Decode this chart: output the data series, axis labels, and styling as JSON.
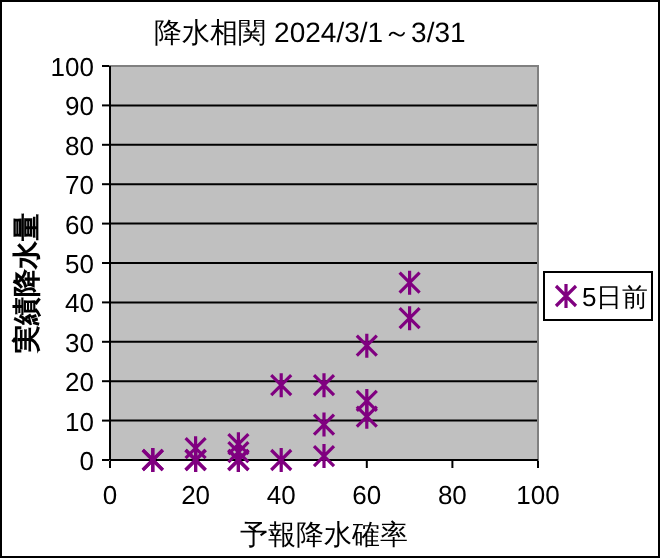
{
  "chart_data": {
    "type": "scatter",
    "title": "降水相関 2024/3/1～3/31",
    "xlabel": "予報降水確率",
    "ylabel": "実績降水量",
    "xlim": [
      0,
      100
    ],
    "xticks": [
      0,
      20,
      40,
      60,
      80,
      100
    ],
    "ylim": [
      0,
      100
    ],
    "yticks": [
      0,
      10,
      20,
      30,
      40,
      50,
      60,
      70,
      80,
      90,
      100
    ],
    "grid": "y",
    "legend": "right",
    "marker": "cross",
    "series": [
      {
        "name": "5日前",
        "color": "#800080",
        "x": [
          10,
          10,
          20,
          20,
          20,
          30,
          30,
          30,
          30,
          40,
          40,
          50,
          50,
          50,
          60,
          60,
          60,
          70,
          70
        ],
        "values": [
          0,
          0,
          0,
          3,
          0,
          0,
          2,
          4,
          0,
          19,
          0,
          19,
          9,
          1,
          29,
          15,
          11,
          45,
          36
        ]
      }
    ]
  }
}
